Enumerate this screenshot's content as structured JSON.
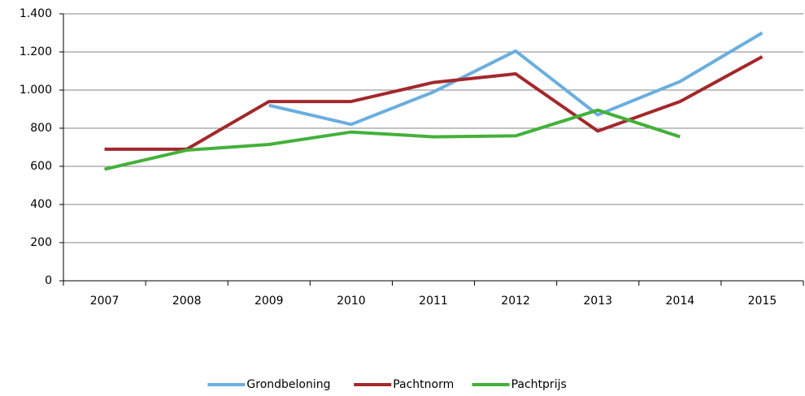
{
  "chart_data": {
    "type": "line",
    "categories": [
      "2007",
      "2008",
      "2009",
      "2010",
      "2011",
      "2012",
      "2013",
      "2014",
      "2015"
    ],
    "series": [
      {
        "name": "Grondbeloning",
        "color": "#6aaee0",
        "values": [
          null,
          null,
          920,
          820,
          990,
          1205,
          870,
          1045,
          1300
        ]
      },
      {
        "name": "Pachtnorm",
        "color": "#a3282c",
        "values": [
          690,
          690,
          940,
          940,
          1040,
          1085,
          785,
          940,
          1175
        ]
      },
      {
        "name": "Pachtprijs",
        "color": "#43b13a",
        "values": [
          585,
          685,
          715,
          780,
          755,
          760,
          895,
          755,
          null
        ]
      }
    ],
    "ylim": [
      0,
      1400
    ],
    "yticks": [
      0,
      200,
      400,
      600,
      800,
      {
        "value": 1000,
        "label": "1.000"
      },
      {
        "value": 1200,
        "label": "1.200"
      },
      {
        "value": 1400,
        "label": "1.400"
      }
    ],
    "grid": true,
    "legend": "bottom"
  }
}
